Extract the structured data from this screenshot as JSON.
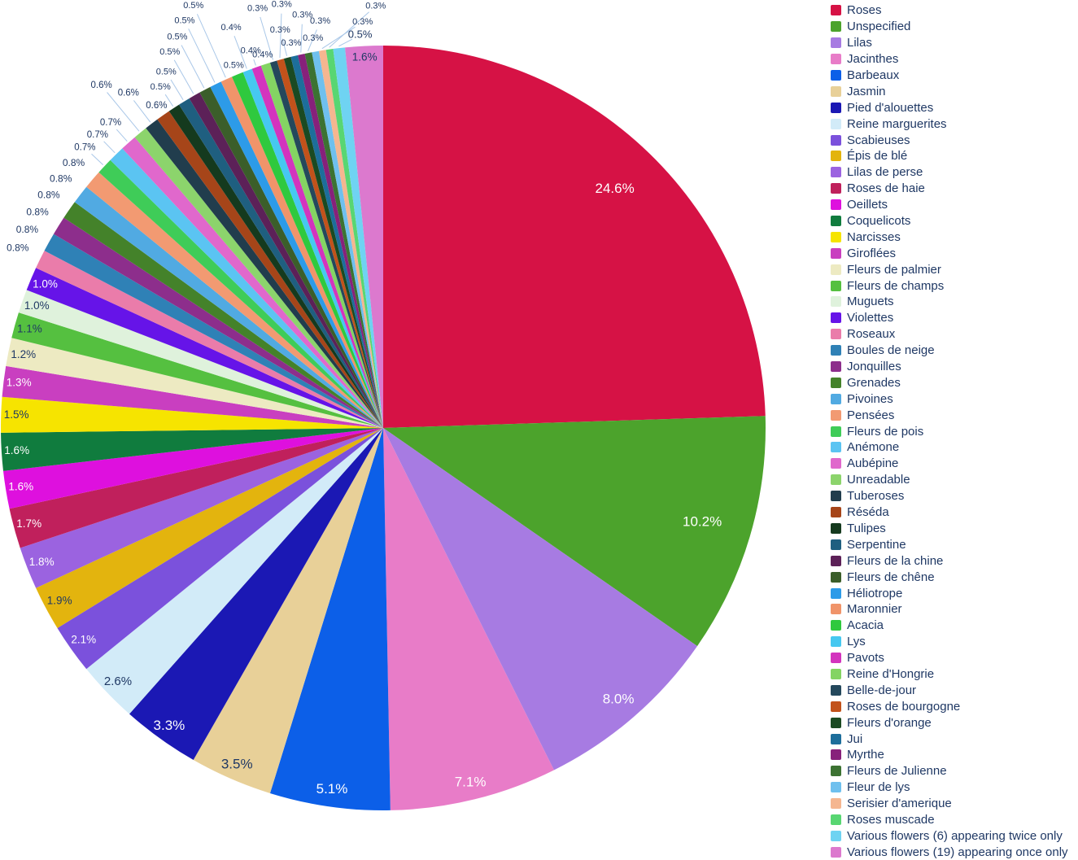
{
  "chart_data": {
    "type": "pie",
    "title": "",
    "legend_position": "right",
    "start_angle_deg": 0,
    "direction": "clockwise",
    "label_dark_color": "#1F3864",
    "label_light_color": "#FFFFFF",
    "leader_line_color": "#A9C7E8",
    "slices": [
      {
        "label": "Roses",
        "value": 24.6,
        "pct_text": "24.6%",
        "color": "#D61245",
        "label_style": "white"
      },
      {
        "label": "Unspecified",
        "value": 10.2,
        "pct_text": "10.2%",
        "color": "#4CA32C",
        "label_style": "white"
      },
      {
        "label": "Lilas",
        "value": 8.0,
        "pct_text": "8.0%",
        "color": "#A77BE2",
        "label_style": "white"
      },
      {
        "label": "Jacinthes",
        "value": 7.1,
        "pct_text": "7.1%",
        "color": "#E87CC8",
        "label_style": "white"
      },
      {
        "label": "Barbeaux",
        "value": 5.1,
        "pct_text": "5.1%",
        "color": "#0C5FE8",
        "label_style": "white"
      },
      {
        "label": "Jasmin",
        "value": 3.5,
        "pct_text": "3.5%",
        "color": "#E8D098",
        "label_style": "dark"
      },
      {
        "label": "Pied d'alouettes",
        "value": 3.3,
        "pct_text": "3.3%",
        "color": "#1B18B4",
        "label_style": "white"
      },
      {
        "label": "Reine marguerites",
        "value": 2.6,
        "pct_text": "2.6%",
        "color": "#D2EBF8",
        "label_style": "dark"
      },
      {
        "label": "Scabieuses",
        "value": 2.1,
        "pct_text": "2.1%",
        "color": "#7B51DC",
        "label_style": "white"
      },
      {
        "label": "Épis de blé",
        "value": 1.9,
        "pct_text": "1.9%",
        "color": "#E3B40E",
        "label_style": "dark"
      },
      {
        "label": "Lilas de perse",
        "value": 1.8,
        "pct_text": "1.8%",
        "color": "#9B63E0",
        "label_style": "white"
      },
      {
        "label": "Roses de haie",
        "value": 1.7,
        "pct_text": "1.7%",
        "color": "#C0205C",
        "label_style": "white"
      },
      {
        "label": "Oeillets",
        "value": 1.6,
        "pct_text": "1.6%",
        "color": "#DE10DE",
        "label_style": "white"
      },
      {
        "label": "Coquelicots",
        "value": 1.6,
        "pct_text": "1.6%",
        "color": "#107C3E",
        "label_style": "white"
      },
      {
        "label": "Narcisses",
        "value": 1.5,
        "pct_text": "1.5%",
        "color": "#F6E400",
        "label_style": "dark"
      },
      {
        "label": "Giroflées",
        "value": 1.3,
        "pct_text": "1.3%",
        "color": "#C93FC0",
        "label_style": "white"
      },
      {
        "label": "Fleurs de palmier",
        "value": 1.2,
        "pct_text": "1.2%",
        "color": "#EDEAC2",
        "label_style": "dark"
      },
      {
        "label": "Fleurs de champs",
        "value": 1.1,
        "pct_text": "1.1%",
        "color": "#55C040",
        "label_style": "dark"
      },
      {
        "label": "Muguets",
        "value": 1.0,
        "pct_text": "1.0%",
        "color": "#DFF2DC",
        "label_style": "dark"
      },
      {
        "label": "Violettes",
        "value": 1.0,
        "pct_text": "1.0%",
        "color": "#6614E8",
        "label_style": "white"
      },
      {
        "label": "Roseaux",
        "value": 0.8,
        "pct_text": "0.8%",
        "color": "#EA7CAA",
        "label_style": "dark"
      },
      {
        "label": "Boules de neige",
        "value": 0.8,
        "pct_text": "0.8%",
        "color": "#2F81B6",
        "label_style": "dark"
      },
      {
        "label": "Jonquilles",
        "value": 0.8,
        "pct_text": "0.8%",
        "color": "#8D2E8C",
        "label_style": "dark"
      },
      {
        "label": "Grenades",
        "value": 0.8,
        "pct_text": "0.8%",
        "color": "#44822A",
        "label_style": "dark"
      },
      {
        "label": "Pivoines",
        "value": 0.8,
        "pct_text": "0.8%",
        "color": "#51AAE2",
        "label_style": "dark"
      },
      {
        "label": "Pensées",
        "value": 0.8,
        "pct_text": "0.8%",
        "color": "#F29A72",
        "label_style": "dark"
      },
      {
        "label": "Fleurs de pois",
        "value": 0.7,
        "pct_text": "0.7%",
        "color": "#3FCC58",
        "label_style": "dark"
      },
      {
        "label": "Anémone",
        "value": 0.7,
        "pct_text": "0.7%",
        "color": "#5BC4F2",
        "label_style": "dark"
      },
      {
        "label": "Aubépine",
        "value": 0.7,
        "pct_text": "0.7%",
        "color": "#E068CC",
        "label_style": "dark"
      },
      {
        "label": "Unreadable",
        "value": 0.6,
        "pct_text": "0.6%",
        "color": "#8CD46C",
        "label_style": "dark"
      },
      {
        "label": "Tuberoses",
        "value": 0.6,
        "pct_text": "0.6%",
        "color": "#213D4D",
        "label_style": "dark"
      },
      {
        "label": "Réséda",
        "value": 0.6,
        "pct_text": "0.6%",
        "color": "#A64519",
        "label_style": "dark"
      },
      {
        "label": "Tulipes",
        "value": 0.5,
        "pct_text": "0.5%",
        "color": "#153A1E",
        "label_style": "dark"
      },
      {
        "label": "Serpentine",
        "value": 0.5,
        "pct_text": "0.5%",
        "color": "#1F5F80",
        "label_style": "dark"
      },
      {
        "label": "Fleurs de la chine",
        "value": 0.5,
        "pct_text": "0.5%",
        "color": "#5C2158",
        "label_style": "dark"
      },
      {
        "label": "Fleurs de chêne",
        "value": 0.5,
        "pct_text": "0.5%",
        "color": "#3B5E2A",
        "label_style": "dark"
      },
      {
        "label": "Héliotrope",
        "value": 0.5,
        "pct_text": "0.5%",
        "color": "#2D9BE8",
        "label_style": "dark"
      },
      {
        "label": "Maronnier",
        "value": 0.5,
        "pct_text": "0.5%",
        "color": "#F0946A",
        "label_style": "dark"
      },
      {
        "label": "Acacia",
        "value": 0.5,
        "pct_text": "0.5%",
        "color": "#2FC93E",
        "label_style": "dark"
      },
      {
        "label": "Lys",
        "value": 0.4,
        "pct_text": "0.4%",
        "color": "#46C8F0",
        "label_style": "dark"
      },
      {
        "label": "Pavots",
        "value": 0.4,
        "pct_text": "0.4%",
        "color": "#D334BE",
        "label_style": "dark"
      },
      {
        "label": "Reine d'Hongrie",
        "value": 0.4,
        "pct_text": "0.4%",
        "color": "#84D463",
        "label_style": "dark"
      },
      {
        "label": "Belle-de-jour",
        "value": 0.3,
        "pct_text": "0.3%",
        "color": "#24485C",
        "label_style": "dark"
      },
      {
        "label": "Roses de bourgogne",
        "value": 0.3,
        "pct_text": "0.3%",
        "color": "#C2521B",
        "label_style": "dark"
      },
      {
        "label": "Fleurs d'orange",
        "value": 0.3,
        "pct_text": "0.3%",
        "color": "#1B4A22",
        "label_style": "dark"
      },
      {
        "label": "Jui",
        "value": 0.3,
        "pct_text": "0.3%",
        "color": "#1D6E9B",
        "label_style": "dark"
      },
      {
        "label": "Myrthe",
        "value": 0.3,
        "pct_text": "0.3%",
        "color": "#87217B",
        "label_style": "dark"
      },
      {
        "label": "Fleurs de Julienne",
        "value": 0.3,
        "pct_text": "0.3%",
        "color": "#3C7232",
        "label_style": "dark"
      },
      {
        "label": "Fleur de lys",
        "value": 0.3,
        "pct_text": "0.3%",
        "color": "#6FC0EE",
        "label_style": "dark"
      },
      {
        "label": "Serisier d'amerique",
        "value": 0.3,
        "pct_text": "0.3%",
        "color": "#F5B690",
        "label_style": "dark"
      },
      {
        "label": "Roses muscade",
        "value": 0.3,
        "pct_text": "0.3%",
        "color": "#58D672",
        "label_style": "dark"
      },
      {
        "label": "Various flowers (6) appearing twice only",
        "value": 0.5,
        "pct_text": "0.5%",
        "color": "#6FD3F2",
        "label_style": "dark"
      },
      {
        "label": "Various flowers (19) appearing once only",
        "value": 1.6,
        "pct_text": "1.6%",
        "color": "#DC79CE",
        "label_style": "dark"
      }
    ]
  }
}
